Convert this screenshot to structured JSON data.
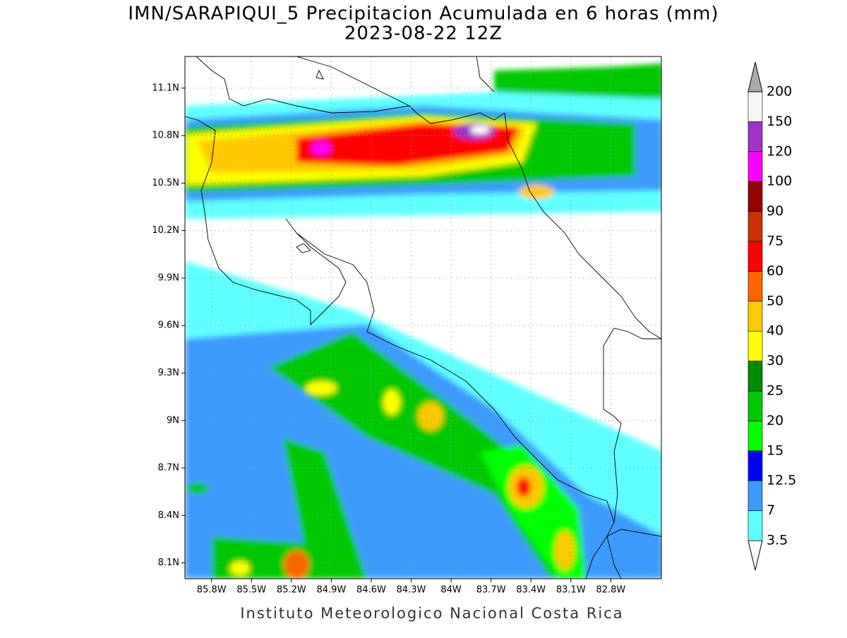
{
  "chart_data": {
    "type": "map",
    "title": "IMN/SARAPIQUI_5 Precipitacion Acumulada en 6 horas (mm)",
    "subtitle": "2023-08-22 12Z",
    "footer": "Instituto Meteorologico Nacional Costa Rica",
    "xlim": [
      -86.0,
      -82.42
    ],
    "ylim": [
      8.0,
      11.3
    ],
    "xticks": [
      {
        "value": -85.8,
        "label": "85.8W"
      },
      {
        "value": -85.5,
        "label": "85.5W"
      },
      {
        "value": -85.2,
        "label": "85.2W"
      },
      {
        "value": -84.9,
        "label": "84.9W"
      },
      {
        "value": -84.6,
        "label": "84.6W"
      },
      {
        "value": -84.3,
        "label": "84.3W"
      },
      {
        "value": -84.0,
        "label": "84W"
      },
      {
        "value": -83.7,
        "label": "83.7W"
      },
      {
        "value": -83.4,
        "label": "83.4W"
      },
      {
        "value": -83.1,
        "label": "83.1W"
      },
      {
        "value": -82.8,
        "label": "82.8W"
      }
    ],
    "yticks": [
      {
        "value": 8.1,
        "label": "8.1N"
      },
      {
        "value": 8.4,
        "label": "8.4N"
      },
      {
        "value": 8.7,
        "label": "8.7N"
      },
      {
        "value": 9.0,
        "label": "9N"
      },
      {
        "value": 9.3,
        "label": "9.3N"
      },
      {
        "value": 9.6,
        "label": "9.6N"
      },
      {
        "value": 9.9,
        "label": "9.9N"
      },
      {
        "value": 10.2,
        "label": "10.2N"
      },
      {
        "value": 10.5,
        "label": "10.5N"
      },
      {
        "value": 10.8,
        "label": "10.8N"
      },
      {
        "value": 11.1,
        "label": "11.1N"
      }
    ],
    "grid": true,
    "levels": [
      3.5,
      7,
      12.5,
      15,
      20,
      25,
      30,
      40,
      50,
      60,
      75,
      90,
      100,
      120,
      150,
      200
    ],
    "colors": [
      "#ffffff",
      "#5fffff",
      "#3c9bff",
      "#0000ff",
      "#00ff00",
      "#00c800",
      "#008c00",
      "#ffff00",
      "#ffc800",
      "#ff6400",
      "#ff0000",
      "#c83200",
      "#960000",
      "#ff00ff",
      "#a032c8",
      "#f5f5f5",
      "#aaaaaa"
    ]
  }
}
